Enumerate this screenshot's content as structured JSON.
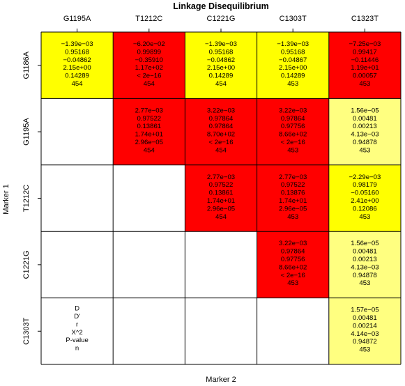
{
  "chart_data": {
    "type": "heatmap",
    "title": "Linkage Disequilibrium",
    "xlabel": "Marker 2",
    "ylabel": "Marker 1",
    "columns": [
      "G1195A",
      "T1212C",
      "C1221G",
      "C1303T",
      "C1323T"
    ],
    "rows": [
      "G1186A",
      "G1195A",
      "T1212C",
      "C1221G",
      "C1303T"
    ],
    "legend_key": [
      "D",
      "D'",
      "r",
      "X^2",
      "P-value",
      "n"
    ],
    "colors": {
      "strong": "#ff0000",
      "moderate": "#ffff00",
      "weak": "#ffff80",
      "empty": "#ffffff",
      "grid": "#000000"
    },
    "cells": [
      {
        "row": 0,
        "col": 0,
        "level": "moderate",
        "values": [
          "−1.39e−03",
          "0.95168",
          "−0.04862",
          "2.15e+00",
          "0.14289",
          "454"
        ]
      },
      {
        "row": 0,
        "col": 1,
        "level": "strong",
        "values": [
          "−6.20e−02",
          "0.99899",
          "−0.35910",
          "1.17e+02",
          "< 2e−16",
          "454"
        ]
      },
      {
        "row": 0,
        "col": 2,
        "level": "moderate",
        "values": [
          "−1.39e−03",
          "0.95168",
          "−0.04862",
          "2.15e+00",
          "0.14289",
          "454"
        ]
      },
      {
        "row": 0,
        "col": 3,
        "level": "moderate",
        "values": [
          "−1.39e−03",
          "0.95168",
          "−0.04867",
          "2.15e+00",
          "0.14289",
          "453"
        ]
      },
      {
        "row": 0,
        "col": 4,
        "level": "strong",
        "values": [
          "−7.25e−03",
          "0.99417",
          "−0.11446",
          "1.19e+01",
          "0.00057",
          "453"
        ]
      },
      {
        "row": 1,
        "col": 1,
        "level": "strong",
        "values": [
          "2.77e−03",
          "0.97522",
          "0.13861",
          "1.74e+01",
          "2.96e−05",
          "454"
        ]
      },
      {
        "row": 1,
        "col": 2,
        "level": "strong",
        "values": [
          "3.22e−03",
          "0.97864",
          "0.97864",
          "8.70e+02",
          "< 2e−16",
          "454"
        ]
      },
      {
        "row": 1,
        "col": 3,
        "level": "strong",
        "values": [
          "3.22e−03",
          "0.97864",
          "0.97756",
          "8.66e+02",
          "< 2e−16",
          "453"
        ]
      },
      {
        "row": 1,
        "col": 4,
        "level": "weak",
        "values": [
          "1.56e−05",
          "0.00481",
          "0.00213",
          "4.13e−03",
          "0.94878",
          "453"
        ]
      },
      {
        "row": 2,
        "col": 2,
        "level": "strong",
        "values": [
          "2.77e−03",
          "0.97522",
          "0.13861",
          "1.74e+01",
          "2.96e−05",
          "454"
        ]
      },
      {
        "row": 2,
        "col": 3,
        "level": "strong",
        "values": [
          "2.77e−03",
          "0.97522",
          "0.13876",
          "1.74e+01",
          "2.96e−05",
          "453"
        ]
      },
      {
        "row": 2,
        "col": 4,
        "level": "moderate",
        "values": [
          "−2.29e−03",
          "0.98179",
          "−0.05160",
          "2.41e+00",
          "0.12086",
          "453"
        ]
      },
      {
        "row": 3,
        "col": 3,
        "level": "strong",
        "values": [
          "3.22e−03",
          "0.97864",
          "0.97756",
          "8.66e+02",
          "< 2e−16",
          "453"
        ]
      },
      {
        "row": 3,
        "col": 4,
        "level": "weak",
        "values": [
          "1.56e−05",
          "0.00481",
          "0.00213",
          "4.13e−03",
          "0.94878",
          "453"
        ]
      },
      {
        "row": 4,
        "col": 4,
        "level": "weak",
        "values": [
          "1.57e−05",
          "0.00481",
          "0.00214",
          "4.14e−03",
          "0.94872",
          "453"
        ]
      }
    ]
  }
}
